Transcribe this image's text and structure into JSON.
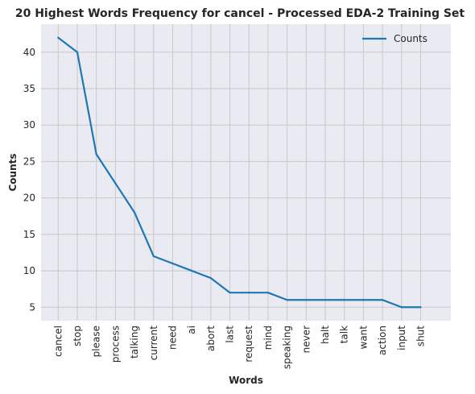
{
  "chart_data": {
    "type": "line",
    "title": "20 Highest Words Frequency for cancel - Processed EDA-2 Training Set",
    "xlabel": "Words",
    "ylabel": "Counts",
    "categories": [
      "cancel",
      "stop",
      "please",
      "process",
      "talking",
      "current",
      "need",
      "ai",
      "abort",
      "last",
      "request",
      "mind",
      "speaking",
      "never",
      "halt",
      "talk",
      "want",
      "action",
      "input",
      "shut"
    ],
    "series": [
      {
        "name": "Counts",
        "values": [
          42,
          40,
          26,
          22,
          18,
          12,
          11,
          10,
          9,
          7,
          7,
          7,
          6,
          6,
          6,
          6,
          6,
          6,
          5,
          5
        ],
        "color": "#1f77b4"
      }
    ],
    "ylim": [
      3.15,
      43.85
    ],
    "yticks": [
      5,
      10,
      15,
      20,
      25,
      30,
      35,
      40
    ],
    "grid": true,
    "legend_position": "top-right",
    "style": {
      "plot_bg": "#eaeaf2",
      "grid_color": "#c8c8c8"
    }
  }
}
